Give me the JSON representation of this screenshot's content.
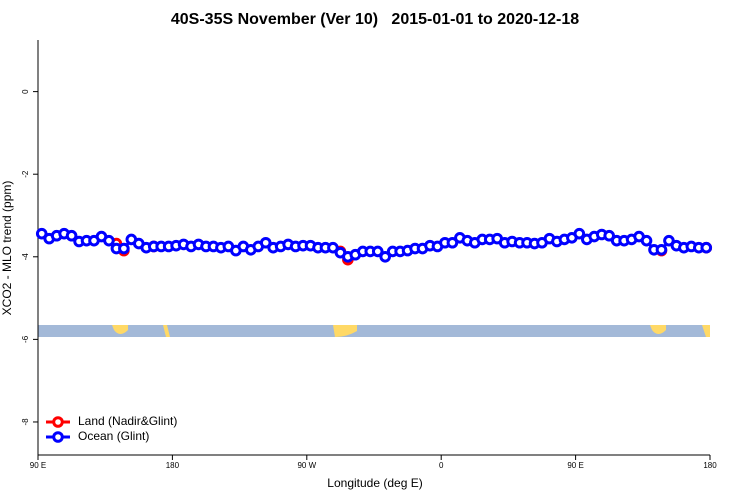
{
  "chart_data": {
    "type": "line",
    "title": "40S-35S November (Ver 10)   2015-01-01 to 2020-12-18",
    "xlabel": "Longitude (deg E)",
    "ylabel": "XCO2 - MLO trend (ppm)",
    "x": [
      92.5,
      97.5,
      102.5,
      107.5,
      112.5,
      117.5,
      122.5,
      127.5,
      132.5,
      137.5,
      142.5,
      147.5,
      152.5,
      157.5,
      162.5,
      167.5,
      172.5,
      177.5,
      182.5,
      187.5,
      192.5,
      197.5,
      202.5,
      207.5,
      212.5,
      217.5,
      222.5,
      227.5,
      232.5,
      237.5,
      242.5,
      247.5,
      252.5,
      257.5,
      262.5,
      267.5,
      272.5,
      277.5,
      282.5,
      287.5,
      292.5,
      297.5,
      302.5,
      307.5,
      312.5,
      317.5,
      322.5,
      327.5,
      332.5,
      337.5,
      342.5,
      347.5,
      352.5,
      357.5,
      362.5,
      367.5,
      372.5,
      377.5,
      382.5,
      387.5,
      392.5,
      397.5,
      402.5,
      407.5,
      412.5,
      417.5,
      422.5,
      427.5,
      432.5,
      437.5,
      442.5,
      447.5,
      452.5,
      457.5,
      462.5,
      467.5,
      472.5,
      477.5,
      482.5,
      487.5,
      492.5,
      497.5,
      502.5,
      507.5,
      512.5,
      517.5,
      522.5,
      527.5,
      532.5,
      537.5
    ],
    "series": [
      {
        "name": "Land (Nadir&Glint)",
        "color": "#ff0000",
        "values": [
          null,
          null,
          null,
          null,
          null,
          null,
          null,
          null,
          null,
          null,
          -3.68,
          -3.85,
          null,
          null,
          null,
          -3.75,
          null,
          null,
          null,
          null,
          null,
          null,
          null,
          null,
          null,
          null,
          null,
          null,
          null,
          null,
          null,
          null,
          null,
          null,
          null,
          null,
          null,
          null,
          null,
          null,
          -3.87,
          -4.07,
          null,
          null,
          null,
          null,
          null,
          null,
          null,
          null,
          null,
          null,
          null,
          null,
          null,
          null,
          null,
          null,
          null,
          null,
          null,
          null,
          null,
          null,
          null,
          null,
          null,
          null,
          null,
          null,
          null,
          null,
          null,
          null,
          null,
          null,
          null,
          null,
          null,
          null,
          null,
          null,
          null,
          -3.85,
          null,
          null,
          null,
          null,
          null,
          -3.78
        ]
      },
      {
        "name": "Ocean (Glint)",
        "color": "#0000ff",
        "values": [
          -3.44,
          -3.56,
          -3.49,
          -3.44,
          -3.49,
          -3.63,
          -3.61,
          -3.61,
          -3.51,
          -3.61,
          -3.8,
          -3.8,
          -3.58,
          -3.68,
          -3.78,
          -3.75,
          -3.75,
          -3.75,
          -3.73,
          -3.7,
          -3.75,
          -3.7,
          -3.75,
          -3.75,
          -3.78,
          -3.75,
          -3.85,
          -3.75,
          -3.83,
          -3.75,
          -3.66,
          -3.78,
          -3.75,
          -3.7,
          -3.75,
          -3.73,
          -3.73,
          -3.78,
          -3.78,
          -3.78,
          -3.9,
          -4.0,
          -3.95,
          -3.87,
          -3.87,
          -3.87,
          -4.0,
          -3.87,
          -3.87,
          -3.85,
          -3.8,
          -3.8,
          -3.73,
          -3.75,
          -3.66,
          -3.66,
          -3.54,
          -3.61,
          -3.66,
          -3.58,
          -3.58,
          -3.56,
          -3.66,
          -3.63,
          -3.66,
          -3.66,
          -3.68,
          -3.66,
          -3.56,
          -3.63,
          -3.58,
          -3.54,
          -3.44,
          -3.58,
          -3.51,
          -3.46,
          -3.49,
          -3.61,
          -3.61,
          -3.58,
          -3.51,
          -3.61,
          -3.83,
          -3.83,
          -3.61,
          -3.73,
          -3.78,
          -3.75,
          -3.78,
          -3.78
        ]
      }
    ],
    "xlim": [
      90,
      540
    ],
    "xticks": [
      {
        "value": 90,
        "label": "90 E"
      },
      180,
      {
        "value": 270,
        "label": "90 W"
      },
      {
        "value": 360,
        "label": "0"
      },
      {
        "value": 450,
        "label": "90 E"
      },
      {
        "value": 540,
        "label": "180"
      }
    ],
    "ylim": [
      -8.8,
      1.25
    ],
    "yticks": [
      0,
      -2,
      -4,
      -6,
      -8
    ],
    "legend": "bottomleft"
  }
}
